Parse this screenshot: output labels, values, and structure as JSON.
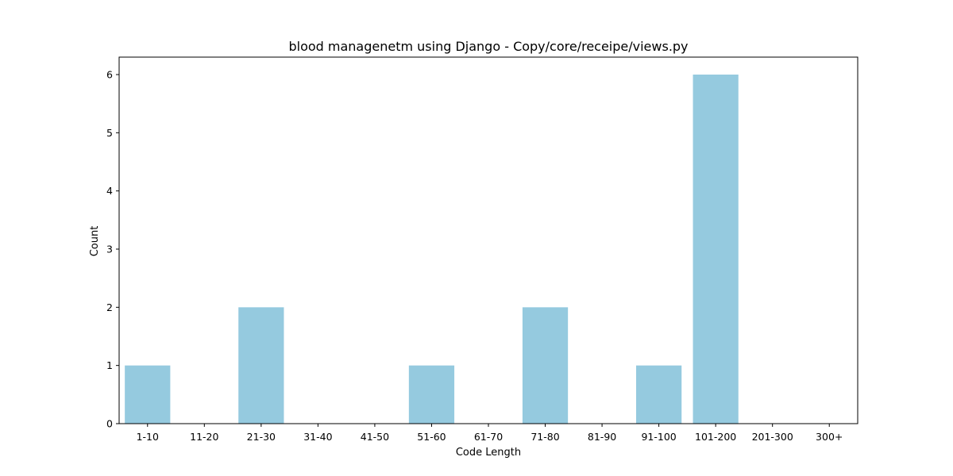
{
  "chart_data": {
    "type": "bar",
    "title": "blood managenetm using Django - Copy/core/receipe/views.py",
    "xlabel": "Code Length",
    "ylabel": "Count",
    "categories": [
      "1-10",
      "11-20",
      "21-30",
      "31-40",
      "41-50",
      "51-60",
      "61-70",
      "71-80",
      "81-90",
      "91-100",
      "101-200",
      "201-300",
      "300+"
    ],
    "values": [
      1,
      0,
      2,
      0,
      0,
      1,
      0,
      2,
      0,
      1,
      6,
      0,
      0
    ],
    "y_ticks": [
      0,
      1,
      2,
      3,
      4,
      5,
      6
    ],
    "ylim": [
      0,
      6.3
    ],
    "grid": false,
    "bar_color": "#95cadf"
  }
}
